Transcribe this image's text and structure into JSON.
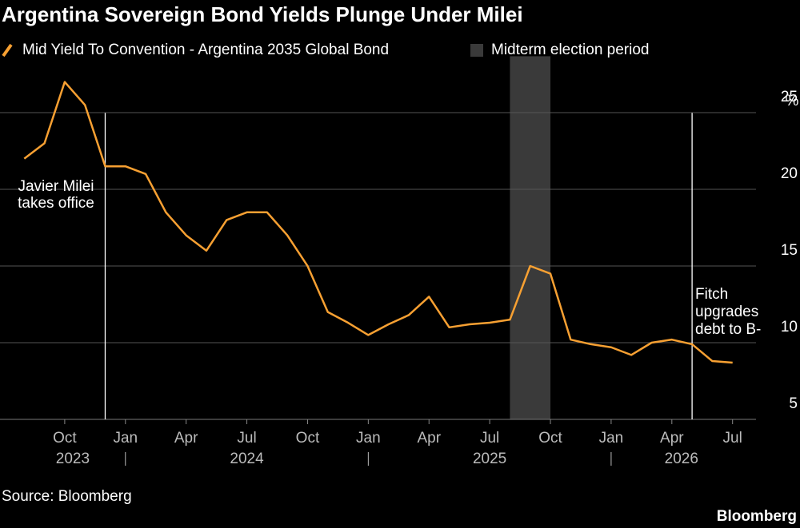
{
  "chart_data": {
    "type": "line",
    "title": "Argentina Sovereign Bond Yields Plunge Under Milei",
    "y_unit": "%",
    "source": "Source: Bloomberg",
    "brand": "Bloomberg",
    "x": [
      "2023-08",
      "2023-09",
      "2023-10",
      "2023-11",
      "2023-12",
      "2024-01",
      "2024-02",
      "2024-03",
      "2024-04",
      "2024-05",
      "2024-06",
      "2024-07",
      "2024-08",
      "2024-09",
      "2024-10",
      "2024-11",
      "2024-12",
      "2025-01",
      "2025-02",
      "2025-03",
      "2025-04",
      "2025-05",
      "2025-06",
      "2025-07",
      "2025-08",
      "2025-09",
      "2025-10",
      "2025-11",
      "2025-12",
      "2026-01",
      "2026-02",
      "2026-03",
      "2026-04",
      "2026-05",
      "2026-06",
      "2026-07"
    ],
    "series": [
      {
        "name": "Mid Yield To Convention - Argentina 2035 Global Bond",
        "color": "#f7a032",
        "values": [
          22,
          23,
          27,
          25.5,
          21.5,
          21.5,
          21,
          18.5,
          17,
          16,
          18,
          18.5,
          18.5,
          17,
          15,
          12,
          11.3,
          10.5,
          11.2,
          11.8,
          13,
          11,
          11.2,
          11.3,
          11.5,
          15,
          14.5,
          10.2,
          9.9,
          9.7,
          9.2,
          10,
          10.2,
          9.9,
          8.8,
          8.7
        ]
      }
    ],
    "shade": {
      "name": "Midterm election period",
      "start": "2025-08",
      "end": "2025-10",
      "color": "#3a3a3a"
    },
    "annotations": [
      {
        "x": "2023-12",
        "text": [
          "Javier Milei",
          "takes office"
        ]
      },
      {
        "x": "2026-05",
        "text": [
          "Fitch",
          "upgrades",
          "debt to B-"
        ]
      }
    ],
    "xlim": [
      "2023-07",
      "2026-08"
    ],
    "xticks": [
      {
        "value": "2023-10",
        "label": "Oct"
      },
      {
        "value": "2024-01",
        "label": "Jan"
      },
      {
        "value": "2024-04",
        "label": "Apr"
      },
      {
        "value": "2024-07",
        "label": "Jul"
      },
      {
        "value": "2024-10",
        "label": "Oct"
      },
      {
        "value": "2025-01",
        "label": "Jan"
      },
      {
        "value": "2025-04",
        "label": "Apr"
      },
      {
        "value": "2025-07",
        "label": "Jul"
      },
      {
        "value": "2025-10",
        "label": "Oct"
      },
      {
        "value": "2026-01",
        "label": "Jan"
      },
      {
        "value": "2026-04",
        "label": "Apr"
      },
      {
        "value": "2026-07",
        "label": "Jul"
      }
    ],
    "year_ticks": [
      {
        "value": "2023-10",
        "label": "2023"
      },
      {
        "value": "2024-07",
        "label": "2024"
      },
      {
        "value": "2025-07",
        "label": "2025"
      },
      {
        "value": "2026-04",
        "label": "2026"
      }
    ],
    "ylim": [
      5,
      28
    ],
    "yticks": [
      5,
      10,
      15,
      20,
      25
    ],
    "grid": true
  }
}
